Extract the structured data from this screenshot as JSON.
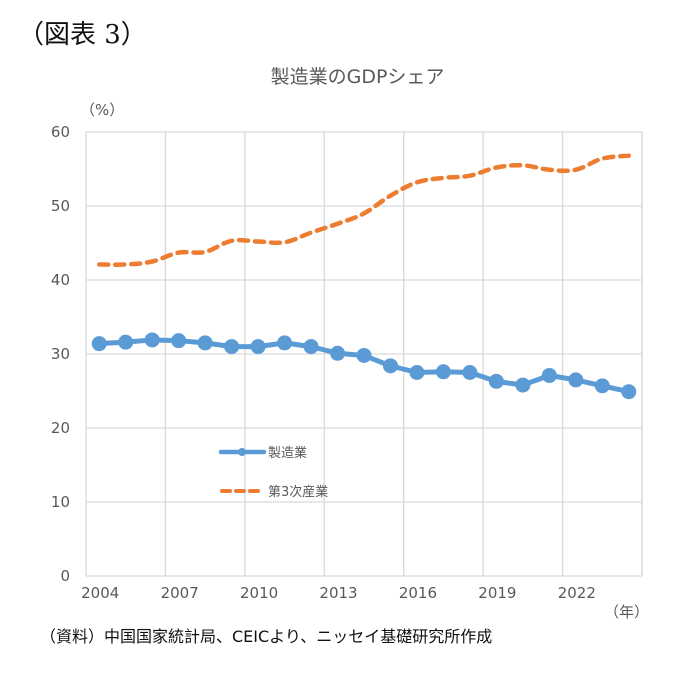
{
  "figure_label": "（図表 3）",
  "source_note": "（資料）中国国家統計局、CEICより、ニッセイ基礎研究所作成",
  "colors": {
    "manufacturing": "#5B9BD5",
    "tertiary": "#ED7D31",
    "grid": "#D9D9D9"
  },
  "chart_data": {
    "type": "line",
    "title": "製造業のGDPシェア",
    "ylabel": "（%）",
    "xlabel": "（年）",
    "ylim": [
      0,
      60
    ],
    "yticks": [
      0,
      10,
      20,
      30,
      40,
      50,
      60
    ],
    "grid": true,
    "legend_position": "center-left",
    "x": [
      2004,
      2005,
      2006,
      2007,
      2008,
      2009,
      2010,
      2011,
      2012,
      2013,
      2014,
      2015,
      2016,
      2017,
      2018,
      2019,
      2020,
      2021,
      2022,
      2023,
      2024
    ],
    "xtick_labels": [
      "2004",
      "2007",
      "2010",
      "2013",
      "2016",
      "2019",
      "2022"
    ],
    "series": [
      {
        "name": "製造業",
        "style": "solid-markers",
        "values": [
          31.4,
          31.6,
          31.9,
          31.8,
          31.5,
          31.0,
          31.0,
          31.5,
          31.0,
          30.1,
          29.8,
          28.4,
          27.5,
          27.6,
          27.5,
          26.3,
          25.8,
          27.1,
          26.5,
          25.7,
          24.9
        ]
      },
      {
        "name": "第3次産業",
        "style": "dashed",
        "values": [
          42.1,
          42.1,
          42.5,
          43.7,
          43.8,
          45.3,
          45.2,
          45.1,
          46.4,
          47.6,
          49.0,
          51.4,
          53.2,
          53.8,
          54.1,
          55.2,
          55.5,
          54.9,
          54.9,
          56.4,
          56.8
        ]
      }
    ]
  }
}
